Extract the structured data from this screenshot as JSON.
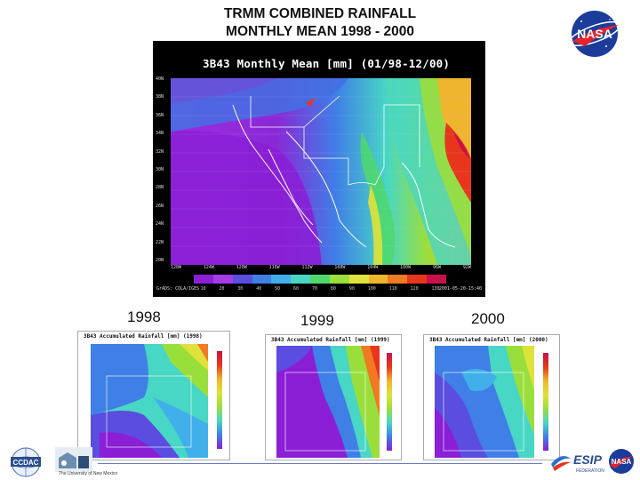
{
  "title": {
    "line1": "TRMM COMBINED RAINFALL",
    "line2": "MONTHLY MEAN 1998 - 2000"
  },
  "main_map": {
    "caption": "3B43 Monthly Mean [mm] (01/98-12/00)",
    "lat_labels": [
      "40N",
      "38N",
      "36N",
      "34N",
      "32N",
      "30N",
      "28N",
      "26N",
      "24N",
      "22N",
      "20N"
    ],
    "lon_labels": [
      "128W",
      "124W",
      "120W",
      "116W",
      "112W",
      "108W",
      "104W",
      "100W",
      "96W",
      "92W"
    ],
    "colorbar_ticks": [
      "10",
      "20",
      "30",
      "40",
      "50",
      "60",
      "70",
      "80",
      "90",
      "100",
      "110",
      "120",
      "130"
    ],
    "footer_left": "GrADS: COLA/IGES",
    "footer_right": "2001-05-20-15:40"
  },
  "years": [
    "1998",
    "1999",
    "2000"
  ],
  "small_maps": [
    {
      "caption": "3B43 Accumulated Rainfall [mm] (1998)"
    },
    {
      "caption": "3B43 Accumulated Rainfall [mm] (1999)"
    },
    {
      "caption": "3B43 Accumulated Rainfall [mm] (2000)"
    }
  ],
  "logos": {
    "nasa": "NASA",
    "ccdac": "CCDAC",
    "university": "The University of New Mexico",
    "esip": "ESIP",
    "esip_sub": "FEDERATION"
  },
  "colors": {
    "scale": [
      "#8a1fd6",
      "#a63be8",
      "#5a4de0",
      "#3f7fe6",
      "#41b0ea",
      "#47d7c4",
      "#4fd86a",
      "#9ade3c",
      "#dfe23a",
      "#f0b52e",
      "#ef7a22",
      "#e8361c",
      "#c8104a"
    ]
  }
}
